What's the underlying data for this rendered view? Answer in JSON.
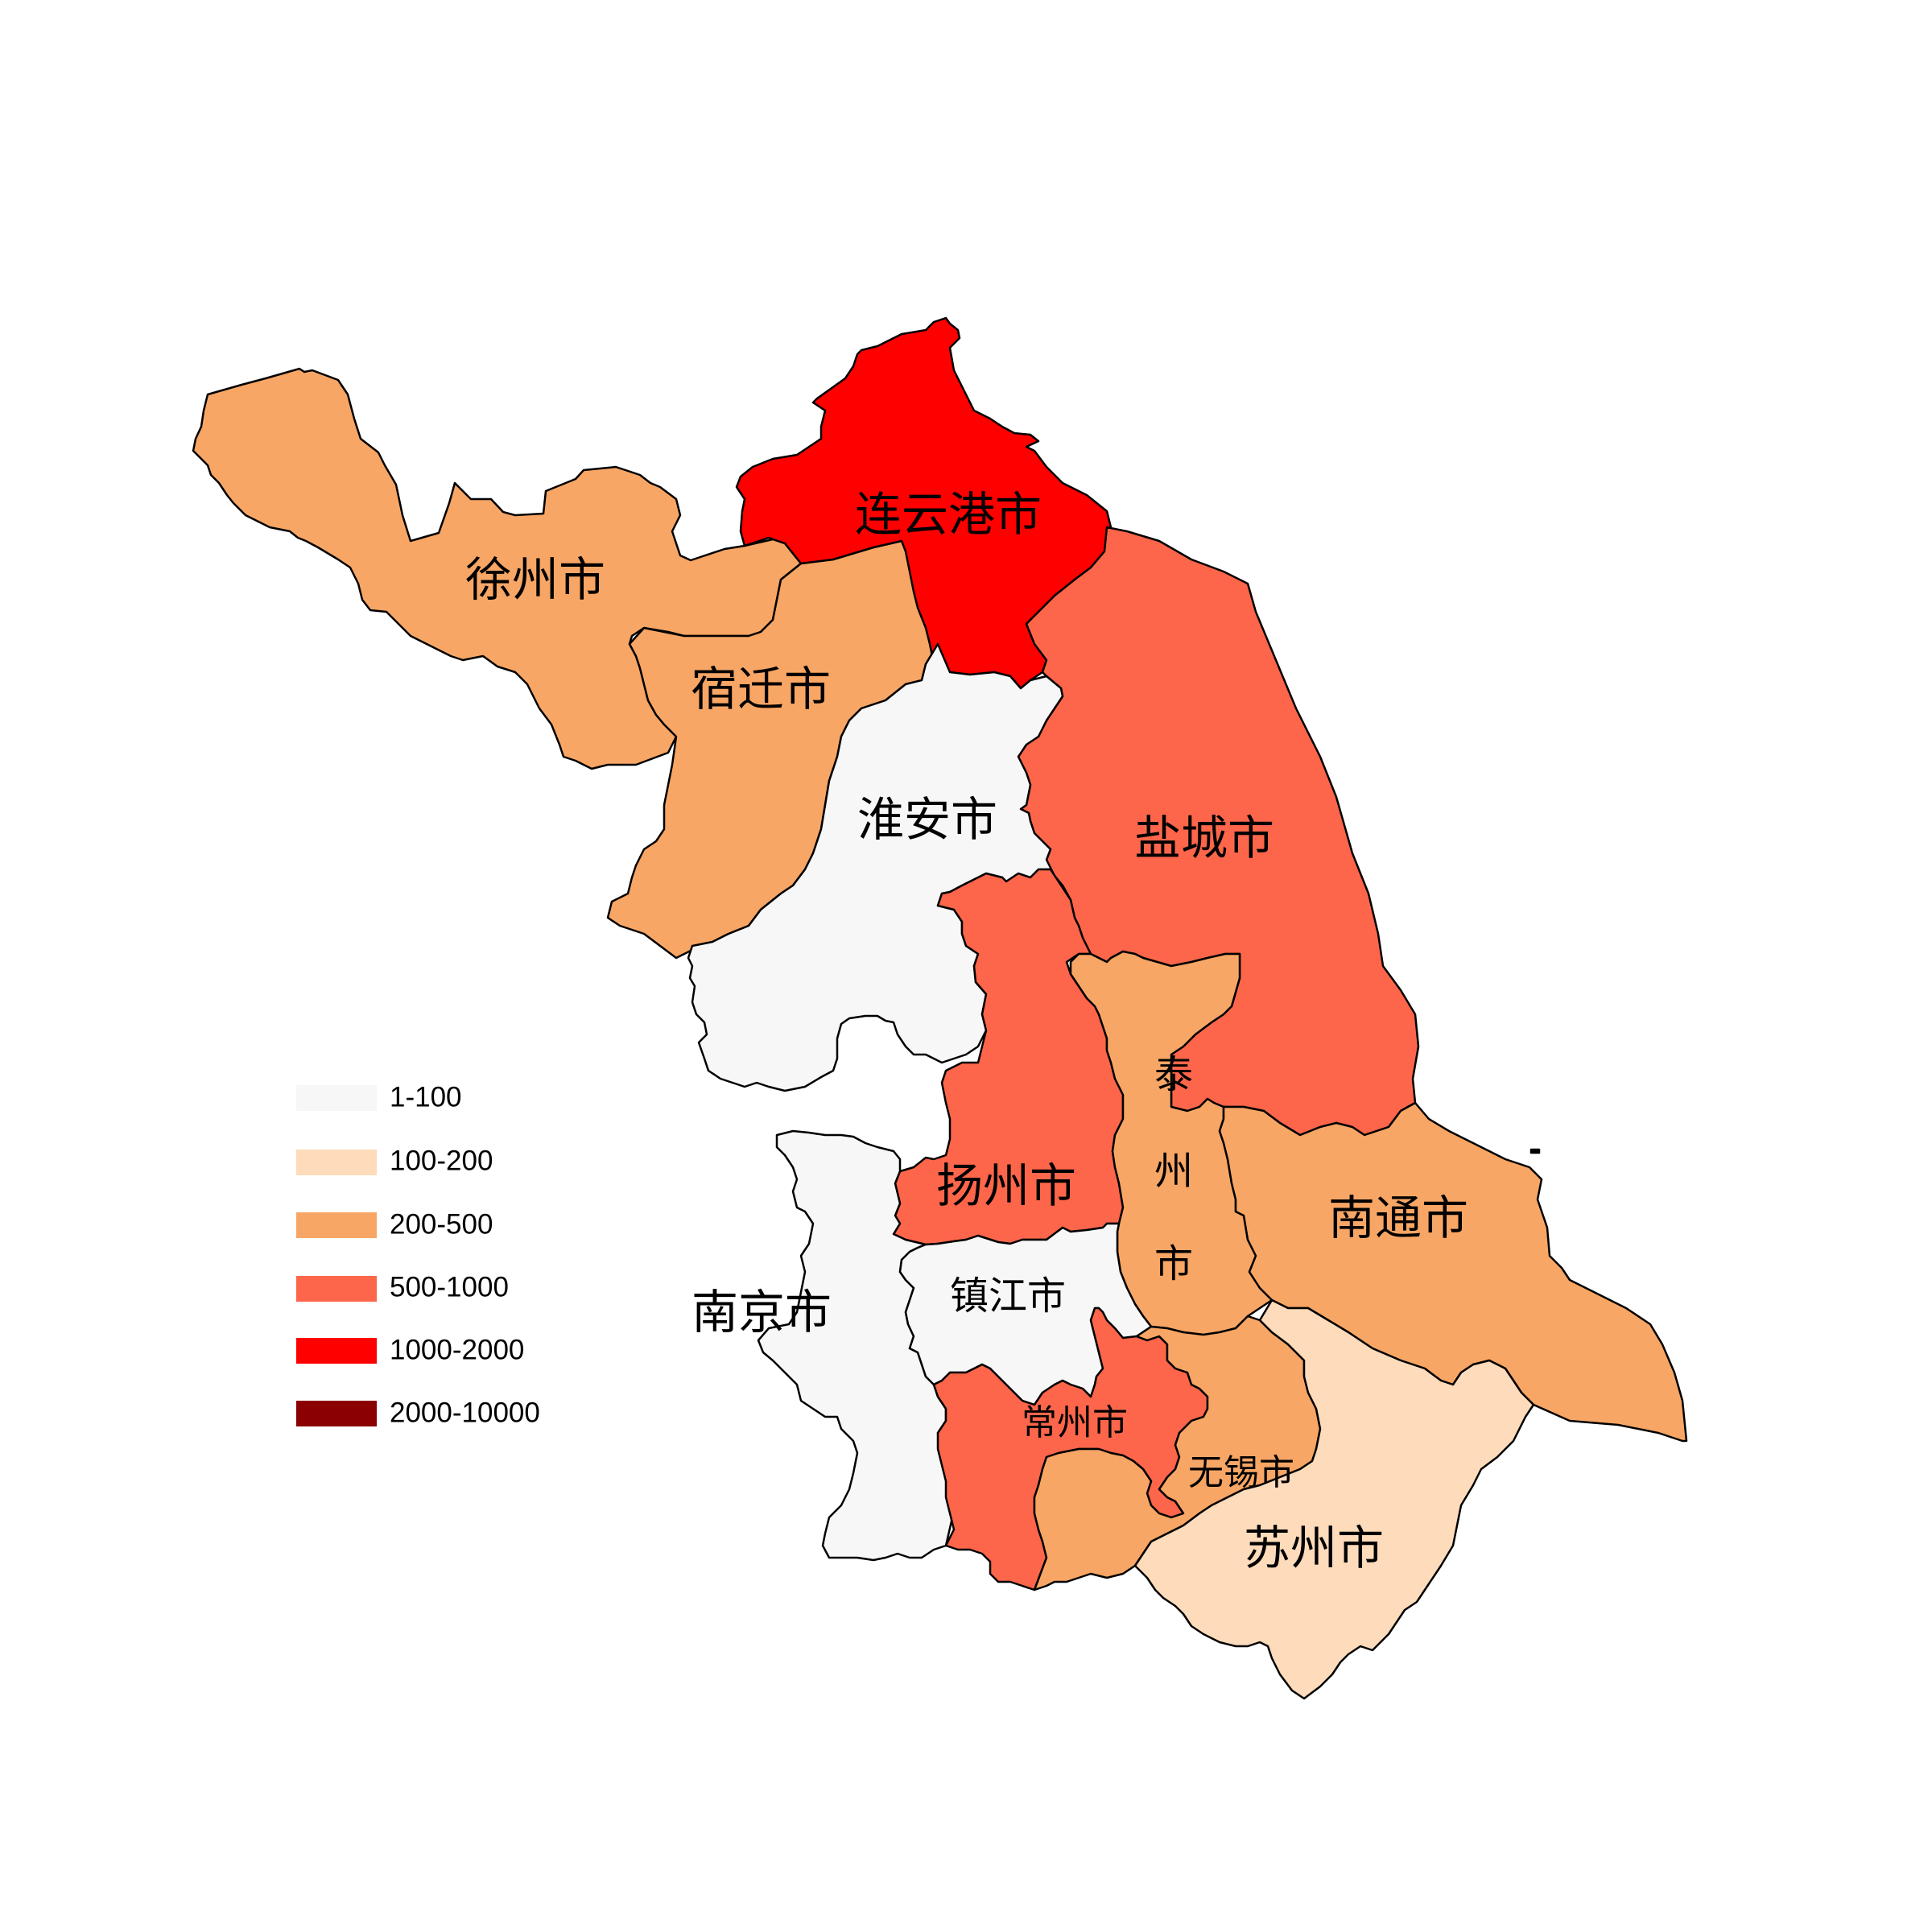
{
  "colors": {
    "c1": "#f7f7f7",
    "c2": "#fddbbb",
    "c3": "#f8a665",
    "c4": "#fd664a",
    "c5": "#fe0000",
    "c6": "#8b0000",
    "border": "#000000"
  },
  "legend": {
    "items": [
      {
        "label": "1-100",
        "color": "#f7f7f7"
      },
      {
        "label": "100-200",
        "color": "#fddbbb"
      },
      {
        "label": "200-500",
        "color": "#f8a665"
      },
      {
        "label": "500-1000",
        "color": "#fd664a"
      },
      {
        "label": "1000-2000",
        "color": "#fe0000"
      },
      {
        "label": "2000-10000",
        "color": "#8b0000"
      }
    ]
  },
  "regions": [
    {
      "name": "连云港市",
      "range": "1000-2000",
      "color": "#fe0000"
    },
    {
      "name": "徐州市",
      "range": "200-500",
      "color": "#f8a665"
    },
    {
      "name": "宿迁市",
      "range": "200-500",
      "color": "#f8a665"
    },
    {
      "name": "淮安市",
      "range": "1-100",
      "color": "#f7f7f7"
    },
    {
      "name": "盐城市",
      "range": "500-1000",
      "color": "#fd664a"
    },
    {
      "name": "扬州市",
      "range": "500-1000",
      "color": "#fd664a"
    },
    {
      "name": "泰州市",
      "label_chars": [
        "泰",
        "州",
        "市"
      ],
      "range": "200-500",
      "color": "#f8a665"
    },
    {
      "name": "南通市",
      "range": "200-500",
      "color": "#f8a665"
    },
    {
      "name": "南京市",
      "range": "1-100",
      "color": "#f7f7f7"
    },
    {
      "name": "镇江市",
      "range": "1-100",
      "color": "#f7f7f7"
    },
    {
      "name": "常州市",
      "range": "500-1000",
      "color": "#fd664a"
    },
    {
      "name": "无锡市",
      "range": "200-500",
      "color": "#f8a665"
    },
    {
      "name": "苏州市",
      "range": "100-200",
      "color": "#fddbbb"
    }
  ]
}
